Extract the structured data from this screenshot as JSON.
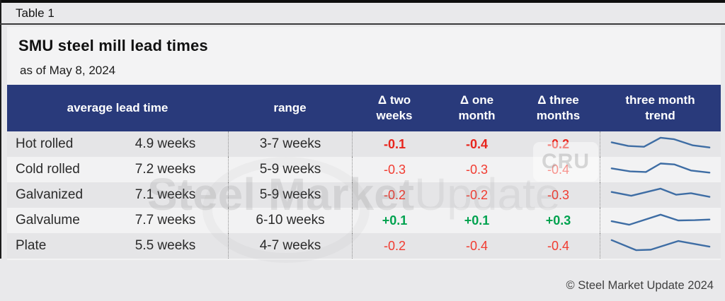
{
  "page": {
    "table_label": "Table 1",
    "title": "SMU steel mill lead times",
    "subtitle": "as of May 8, 2024",
    "footer": "© Steel Market Update 2024",
    "watermark": {
      "bold": "Steel Market",
      "light": "Update",
      "badge": "CRU"
    }
  },
  "colors": {
    "header_bg": "#293a7b",
    "header_text": "#ffffff",
    "delta_down": "#f13b30",
    "delta_up": "#00a24f",
    "sparkline": "#3e6da4",
    "row_odd": "#e5e5e7",
    "row_even": "#f2f2f3"
  },
  "table": {
    "headers": {
      "avg": "average lead time",
      "range": "range",
      "d2w_l1": "Δ two",
      "d2w_l2": "weeks",
      "d1m_l1": "Δ one",
      "d1m_l2": "month",
      "d3m_l1": "Δ three",
      "d3m_l2": "months",
      "trend_l1": "three month",
      "trend_l2": "trend"
    },
    "rows": [
      {
        "product": "Hot rolled",
        "avg": "4.9 weeks",
        "range": "3-7 weeks",
        "d2w": "-0.1",
        "d1m": "-0.4",
        "d3m": "-0.2",
        "emphasis": true
      },
      {
        "product": "Cold rolled",
        "avg": "7.2 weeks",
        "range": "5-9 weeks",
        "d2w": "-0.3",
        "d1m": "-0.3",
        "d3m": "-0.4",
        "emphasis": false
      },
      {
        "product": "Galvanized",
        "avg": "7.1 weeks",
        "range": "5-9 weeks",
        "d2w": "-0.2",
        "d1m": "-0.2",
        "d3m": "-0.3",
        "emphasis": false
      },
      {
        "product": "Galvalume",
        "avg": "7.7 weeks",
        "range": "6-10 weeks",
        "d2w": "+0.1",
        "d1m": "+0.1",
        "d3m": "+0.3",
        "emphasis": true
      },
      {
        "product": "Plate",
        "avg": "5.5 weeks",
        "range": "4-7 weeks",
        "d2w": "-0.2",
        "d1m": "-0.4",
        "d3m": "-0.4",
        "emphasis": false
      }
    ]
  },
  "chart_data": {
    "type": "line",
    "title": "three month trend",
    "note": "sparkline shapes read from pixels; x_pct is position across the three-month window, y_pct is relative lead-time level (0=low, 100=high)",
    "line_color": "#3e6da4",
    "series": [
      {
        "name": "Hot rolled",
        "x_pct": [
          0,
          17,
          33,
          50,
          64,
          83,
          100
        ],
        "y_pct": [
          62,
          38,
          33,
          92,
          82,
          42,
          28
        ]
      },
      {
        "name": "Cold rolled",
        "x_pct": [
          0,
          19,
          35,
          50,
          64,
          81,
          100
        ],
        "y_pct": [
          58,
          38,
          34,
          90,
          84,
          44,
          30
        ]
      },
      {
        "name": "Galvanized",
        "x_pct": [
          0,
          20,
          50,
          66,
          81,
          100
        ],
        "y_pct": [
          70,
          45,
          92,
          52,
          62,
          38
        ]
      },
      {
        "name": "Galvalume",
        "x_pct": [
          0,
          18,
          50,
          68,
          85,
          100
        ],
        "y_pct": [
          45,
          22,
          88,
          50,
          52,
          56
        ]
      },
      {
        "name": "Plate",
        "x_pct": [
          0,
          25,
          40,
          68,
          100
        ],
        "y_pct": [
          88,
          22,
          25,
          82,
          45
        ]
      }
    ]
  }
}
